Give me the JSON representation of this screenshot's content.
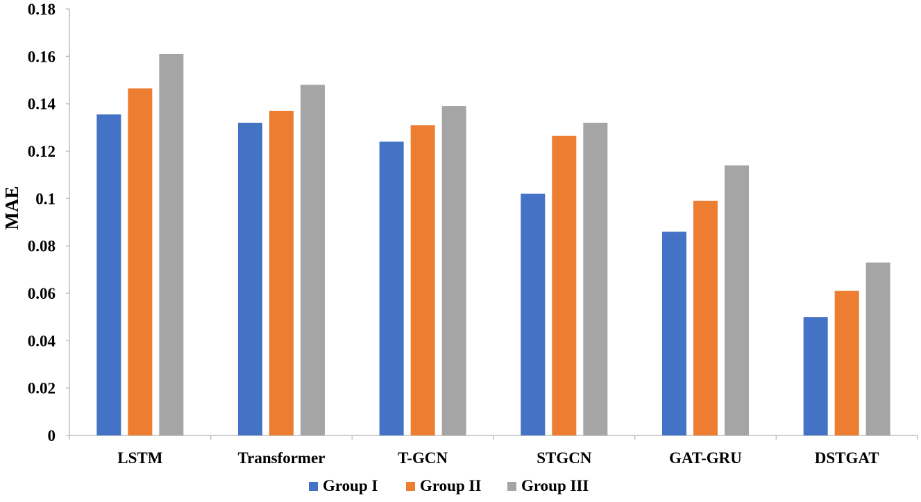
{
  "chart_data": {
    "type": "bar",
    "title": "",
    "xlabel": "",
    "ylabel": "MAE",
    "ylim": [
      0,
      0.18
    ],
    "yticks": [
      "0",
      "0.02",
      "0.04",
      "0.06",
      "0.08",
      "0.1",
      "0.12",
      "0.14",
      "0.16",
      "0.18"
    ],
    "grid": false,
    "legend": "bottom-center",
    "categories": [
      "LSTM",
      "Transformer",
      "T-GCN",
      "STGCN",
      "GAT-GRU",
      "DSTGAT"
    ],
    "series": [
      {
        "name": "Group I",
        "color": "#4472C4",
        "values": [
          0.1355,
          0.132,
          0.124,
          0.102,
          0.086,
          0.05
        ]
      },
      {
        "name": "Group II",
        "color": "#ED7D31",
        "values": [
          0.1465,
          0.137,
          0.131,
          0.1265,
          0.099,
          0.061
        ]
      },
      {
        "name": "Group III",
        "color": "#A5A5A5",
        "values": [
          0.161,
          0.148,
          0.139,
          0.132,
          0.114,
          0.073
        ]
      }
    ]
  }
}
